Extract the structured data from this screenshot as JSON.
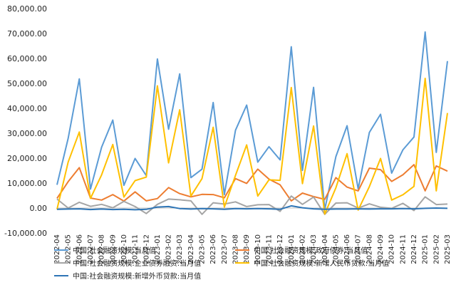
{
  "chart_data": {
    "type": "line",
    "title": "",
    "xlabel": "",
    "ylabel": "",
    "ylim": [
      -10000,
      80000
    ],
    "yticks": [
      -10000,
      0,
      10000,
      20000,
      30000,
      40000,
      50000,
      60000,
      70000,
      80000
    ],
    "ytick_labels": [
      "-10,000.00",
      "0.00",
      "10,000.00",
      "20,000.00",
      "30,000.00",
      "40,000.00",
      "50,000.00",
      "60,000.00",
      "70,000.00",
      "80,000.00"
    ],
    "grid": false,
    "legend_position": "bottom",
    "categories": [
      "2022-04",
      "2022-05",
      "2022-06",
      "2022-07",
      "2022-08",
      "2022-09",
      "2022-10",
      "2022-11",
      "2022-12",
      "2023-01",
      "2023-02",
      "2023-03",
      "2023-04",
      "2023-05",
      "2023-06",
      "2023-07",
      "2023-08",
      "2023-09",
      "2023-10",
      "2023-11",
      "2023-12",
      "2024-01",
      "2024-02",
      "2024-03",
      "2024-04",
      "2024-05",
      "2024-06",
      "2024-07",
      "2024-08",
      "2024-09",
      "2024-10",
      "2024-11",
      "2024-12",
      "2025-01",
      "2025-02",
      "2025-03"
    ],
    "series": [
      {
        "name": "中国:社会融资规模:当月值",
        "color": "#5b9bd5",
        "values": [
          9300,
          28000,
          51800,
          7600,
          24400,
          35300,
          9100,
          19900,
          13000,
          59800,
          31600,
          53800,
          12200,
          15600,
          42300,
          5400,
          31200,
          41300,
          18400,
          24600,
          19300,
          64700,
          15100,
          48400,
          -600,
          20600,
          33000,
          7700,
          30300,
          37600,
          14000,
          23300,
          28500,
          70600,
          22300,
          58900
        ]
      },
      {
        "name": "中国:社会融资规模:政府债券:当月值",
        "color": "#ed7d31",
        "values": [
          3900,
          10600,
          16200,
          4000,
          3200,
          5400,
          2800,
          6500,
          2900,
          3800,
          8200,
          5800,
          4500,
          5500,
          5400,
          4100,
          11800,
          9900,
          15600,
          11600,
          9300,
          2900,
          6000,
          4600,
          3500,
          12200,
          8400,
          6900,
          16000,
          15400,
          10700,
          13300,
          17400,
          6900,
          16900,
          14800
        ]
      },
      {
        "name": "中国:社会融资规模:企业债券融资:当月值",
        "color": "#a5a5a5",
        "values": [
          3600,
          0,
          2300,
          700,
          1500,
          100,
          2700,
          600,
          -2200,
          1500,
          3600,
          3300,
          2900,
          -2500,
          2100,
          1600,
          2500,
          600,
          1300,
          1400,
          -1300,
          4800,
          1500,
          4400,
          -2500,
          2000,
          2100,
          0,
          1700,
          300,
          -100,
          1900,
          -1000,
          4500,
          1400,
          1600
        ]
      },
      {
        "name": "中国:社会融资规模:新增人民币贷款:当月值",
        "color": "#ffc000",
        "values": [
          -500,
          18500,
          30500,
          3900,
          13300,
          25500,
          4400,
          11000,
          12400,
          49000,
          18100,
          39400,
          4800,
          11800,
          32400,
          400,
          13100,
          25300,
          4800,
          11300,
          11100,
          48300,
          9800,
          32900,
          -2400,
          8100,
          21800,
          -800,
          8600,
          19900,
          3200,
          5300,
          8700,
          52000,
          6900,
          38100
        ]
      },
      {
        "name": "中国:社会融资规模:新增外币贷款:当月值",
        "color": "#2e75b6",
        "values": [
          -500,
          -400,
          -300,
          -600,
          -400,
          -600,
          -500,
          -700,
          -500,
          400,
          600,
          -200,
          -400,
          -200,
          -300,
          -500,
          -200,
          -300,
          -200,
          -300,
          -500,
          900,
          100,
          -300,
          -500,
          -400,
          -400,
          -300,
          -400,
          -300,
          -300,
          -200,
          -300,
          -100,
          0,
          -100
        ]
      }
    ]
  }
}
